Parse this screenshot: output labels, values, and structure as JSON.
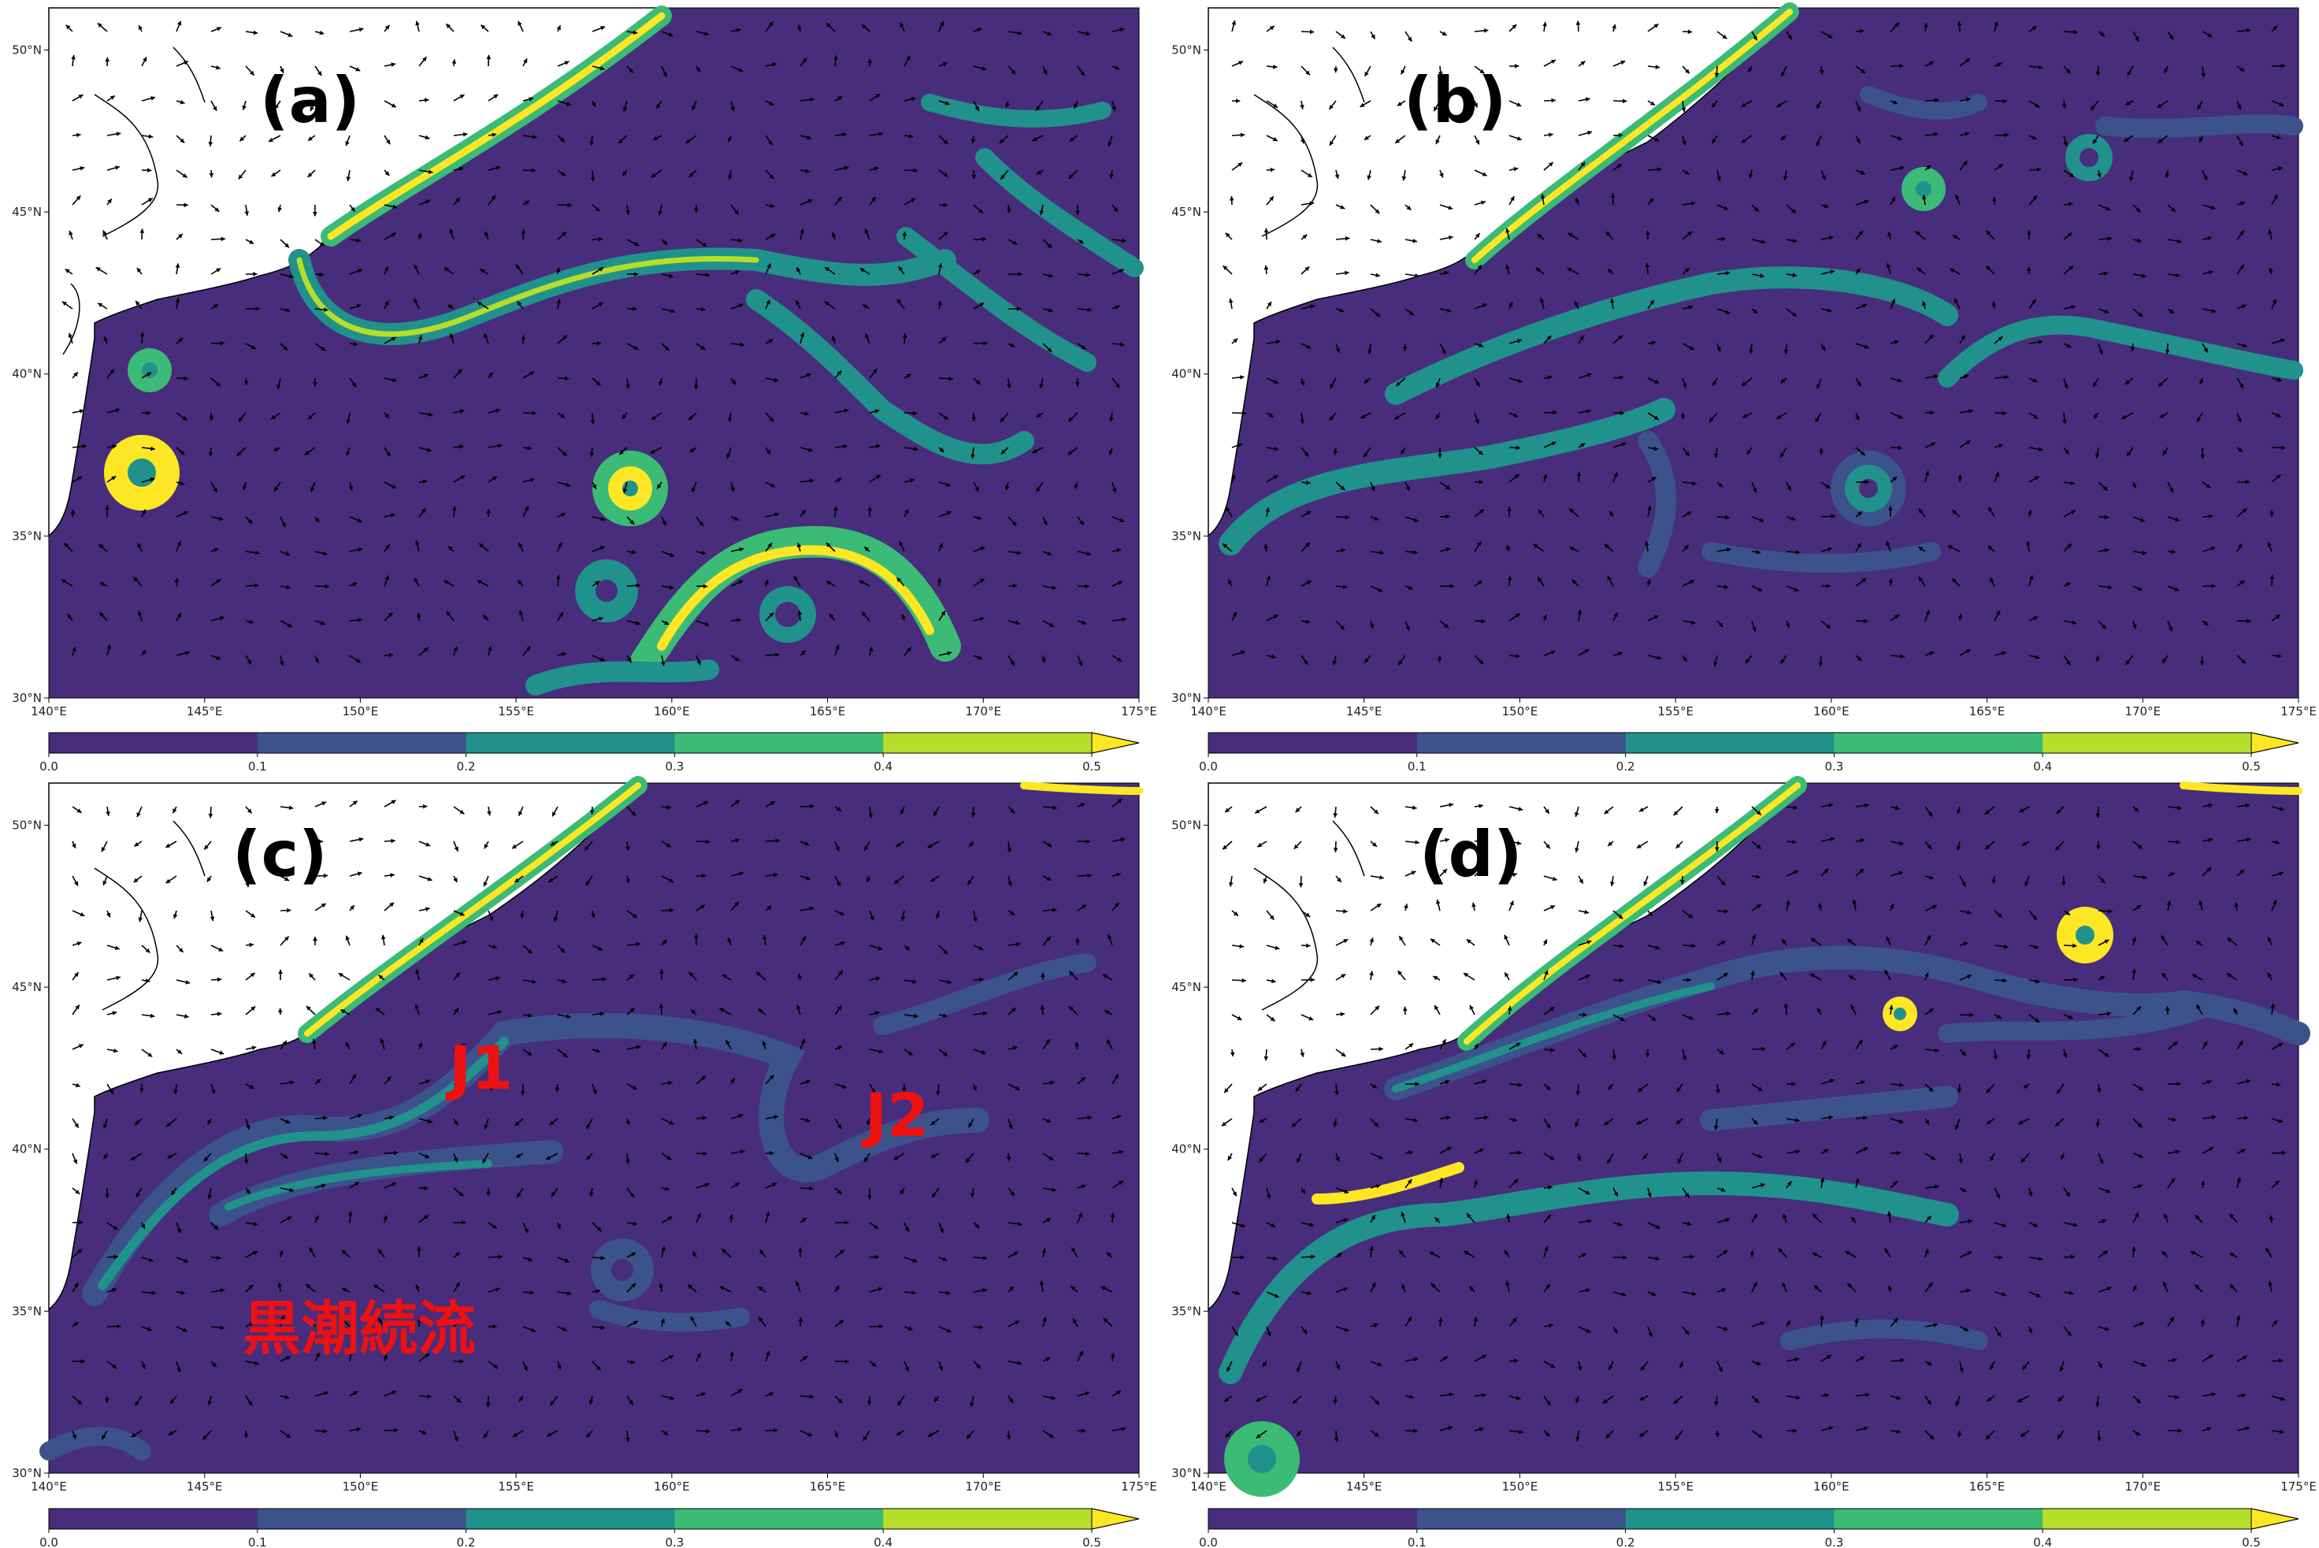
{
  "panels": [
    {
      "id": "a",
      "label": "(a)"
    },
    {
      "id": "b",
      "label": "(b)"
    },
    {
      "id": "c",
      "label": "(c)",
      "annotations": {
        "j1": "J1",
        "j2": "J2",
        "kuroshio": "黒潮続流"
      }
    },
    {
      "id": "d",
      "label": "(d)"
    }
  ],
  "axes": {
    "lon_ticks": [
      "140°E",
      "145°E",
      "150°E",
      "155°E",
      "160°E",
      "165°E",
      "170°E",
      "175°E"
    ],
    "lat_ticks": [
      "30°N",
      "35°N",
      "40°N",
      "45°N",
      "50°N"
    ]
  },
  "colorbar": {
    "ticks": [
      "0.0",
      "0.1",
      "0.2",
      "0.3",
      "0.4",
      "0.5"
    ],
    "extend": "max",
    "colors": [
      "#472d7b",
      "#3b528b",
      "#21918c",
      "#3bbb75",
      "#b5de2b",
      "#fde725"
    ]
  },
  "colors": {
    "ocean_background": "#472d7b",
    "land": "#ffffff",
    "annotation_text": "#ee1111"
  }
}
